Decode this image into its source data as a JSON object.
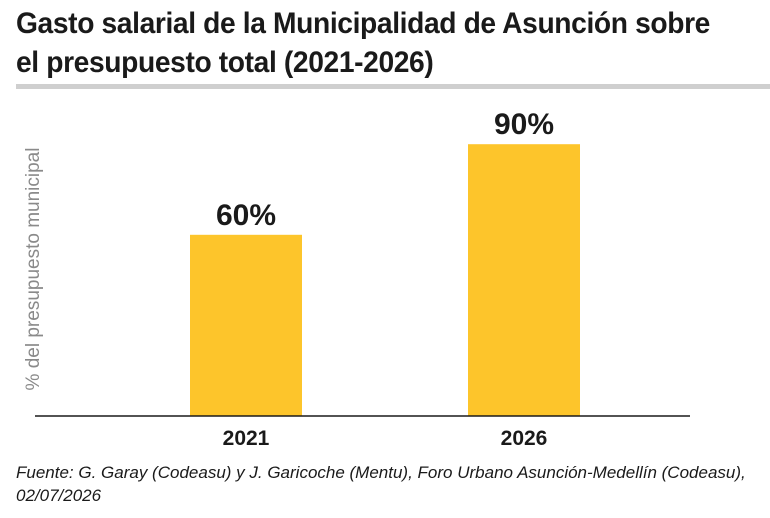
{
  "title": "Gasto salarial de la Municipalidad de Asunción sobre el presupuesto total (2021-2026)",
  "source": "Fuente: G. Garay (Codeasu) y J. Garicoche (Mentu), Foro Urbano Asunción-Medellín (Codeasu), 02/07/2026",
  "chart_data": {
    "type": "bar",
    "title": "Gasto salarial de la Municipalidad de Asunción sobre el presupuesto total (2021-2026)",
    "xlabel": "",
    "ylabel": "% del presupuesto municipal",
    "categories": [
      "2021",
      "2026"
    ],
    "values": [
      60,
      90
    ],
    "data_labels": [
      "60%",
      "90%"
    ],
    "unit": "%",
    "ylim": [
      0,
      100
    ],
    "grid": false,
    "legend": "none",
    "bar_color": "#fdc52b"
  }
}
